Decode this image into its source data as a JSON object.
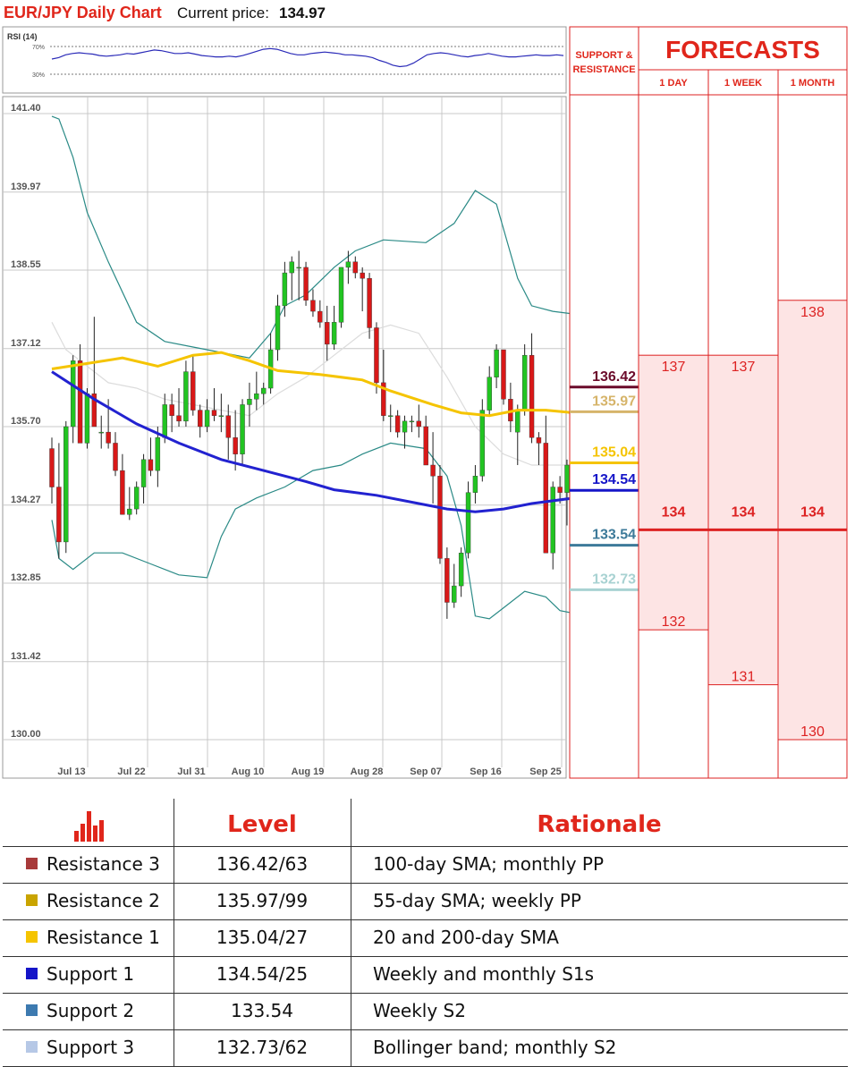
{
  "header": {
    "title": "EUR/JPY Daily Chart",
    "price_label": "Current price:",
    "price_value": "134.97"
  },
  "colors": {
    "resistance3": "#6b0b2b",
    "resistance2": "#d6b46a",
    "resistance1": "#f5c400",
    "support1": "#1515c8",
    "support2": "#3d7a99",
    "support3": "#a8d2d2",
    "accent_red": "#e0261b",
    "bull": "#22c422",
    "bear": "#d81818"
  },
  "rsi": {
    "label": "RSI (14)",
    "upper_label": "70%",
    "lower_label": "30%",
    "values": [
      52,
      54,
      58,
      60,
      61,
      60,
      59,
      57,
      56,
      57,
      58,
      60,
      59,
      61,
      63,
      65,
      64,
      62,
      60,
      60,
      61,
      59,
      57,
      56,
      55,
      55,
      56,
      55,
      57,
      60,
      63,
      66,
      67,
      66,
      63,
      60,
      58,
      58,
      60,
      61,
      62,
      61,
      60,
      58,
      58,
      57,
      56,
      54,
      50,
      47,
      43,
      41,
      42,
      46,
      52,
      58,
      60,
      61,
      60,
      58,
      56,
      55,
      57,
      58,
      60,
      58,
      56,
      55,
      55,
      56,
      57,
      58,
      57,
      57,
      58,
      57
    ]
  },
  "chart_data": {
    "type": "candlestick",
    "title": "EUR/JPY Daily Chart",
    "y_ticks": [
      "141.40",
      "139.97",
      "138.55",
      "137.12",
      "135.70",
      "134.27",
      "132.85",
      "131.42",
      "130.00"
    ],
    "x_ticks": [
      "Jul 13",
      "Jul 22",
      "Jul 31",
      "Aug 10",
      "Aug 19",
      "Aug 28",
      "Sep 07",
      "Sep 16",
      "Sep 25"
    ],
    "ylim": [
      130.0,
      141.4
    ],
    "grid": true,
    "candles": [
      [
        135.3,
        135.5,
        134.3,
        134.6
      ],
      [
        134.6,
        135.4,
        133.3,
        133.6
      ],
      [
        133.6,
        135.8,
        133.4,
        135.7
      ],
      [
        135.7,
        137.0,
        135.4,
        136.9
      ],
      [
        136.9,
        137.2,
        135.4,
        135.4
      ],
      [
        135.4,
        136.4,
        135.3,
        136.3
      ],
      [
        136.3,
        137.7,
        135.8,
        135.7
      ],
      [
        135.6,
        135.9,
        135.3,
        135.6
      ],
      [
        135.6,
        136.2,
        135.3,
        135.4
      ],
      [
        135.4,
        135.6,
        134.8,
        134.9
      ],
      [
        134.9,
        135.2,
        134.1,
        134.1
      ],
      [
        134.1,
        134.6,
        134.0,
        134.2
      ],
      [
        134.2,
        134.7,
        134.1,
        134.6
      ],
      [
        134.6,
        135.2,
        134.3,
        135.1
      ],
      [
        135.1,
        135.5,
        134.8,
        134.9
      ],
      [
        134.9,
        135.7,
        134.6,
        135.5
      ],
      [
        135.5,
        136.3,
        135.4,
        136.1
      ],
      [
        136.1,
        136.3,
        135.6,
        135.9
      ],
      [
        135.9,
        136.4,
        135.7,
        135.8
      ],
      [
        135.8,
        136.9,
        135.7,
        136.7
      ],
      [
        136.7,
        137.0,
        135.9,
        136.0
      ],
      [
        136.0,
        136.1,
        135.5,
        135.7
      ],
      [
        135.7,
        136.2,
        135.6,
        136.0
      ],
      [
        136.0,
        136.4,
        135.8,
        135.9
      ],
      [
        135.9,
        136.3,
        135.6,
        135.9
      ],
      [
        135.9,
        136.1,
        135.1,
        135.5
      ],
      [
        135.5,
        136.0,
        134.9,
        135.2
      ],
      [
        135.2,
        136.2,
        135.0,
        136.1
      ],
      [
        136.1,
        136.5,
        135.7,
        136.2
      ],
      [
        136.2,
        136.7,
        136.0,
        136.3
      ],
      [
        136.3,
        136.5,
        136.1,
        136.4
      ],
      [
        136.4,
        137.4,
        136.3,
        137.1
      ],
      [
        137.1,
        138.1,
        136.9,
        137.9
      ],
      [
        137.9,
        138.7,
        137.7,
        138.5
      ],
      [
        138.5,
        138.8,
        138.0,
        138.7
      ],
      [
        138.6,
        138.9,
        138.0,
        138.6
      ],
      [
        138.6,
        138.7,
        137.9,
        138.0
      ],
      [
        138.0,
        138.2,
        137.7,
        137.8
      ],
      [
        137.8,
        138.0,
        137.5,
        137.6
      ],
      [
        137.6,
        137.9,
        136.9,
        137.2
      ],
      [
        137.2,
        137.9,
        137.1,
        137.6
      ],
      [
        137.6,
        138.6,
        137.5,
        138.6
      ],
      [
        138.6,
        138.9,
        138.3,
        138.7
      ],
      [
        138.7,
        138.8,
        138.4,
        138.5
      ],
      [
        138.5,
        138.6,
        137.8,
        138.4
      ],
      [
        138.4,
        138.5,
        137.3,
        137.5
      ],
      [
        137.5,
        137.6,
        136.3,
        136.5
      ],
      [
        136.5,
        137.1,
        135.8,
        135.9
      ],
      [
        135.9,
        136.1,
        135.6,
        135.9
      ],
      [
        135.9,
        136.0,
        135.5,
        135.6
      ],
      [
        135.6,
        135.9,
        135.3,
        135.8
      ],
      [
        135.8,
        135.9,
        135.6,
        135.8
      ],
      [
        135.8,
        136.1,
        135.5,
        135.7
      ],
      [
        135.7,
        135.9,
        135.0,
        135.0
      ],
      [
        135.0,
        135.6,
        134.3,
        134.8
      ],
      [
        134.8,
        135.0,
        133.2,
        133.3
      ],
      [
        133.3,
        133.5,
        132.2,
        132.5
      ],
      [
        132.5,
        133.2,
        132.4,
        132.8
      ],
      [
        132.8,
        133.5,
        132.6,
        133.4
      ],
      [
        133.4,
        134.7,
        133.3,
        134.5
      ],
      [
        134.5,
        135.0,
        134.3,
        134.8
      ],
      [
        134.8,
        136.2,
        134.7,
        136.0
      ],
      [
        136.0,
        136.8,
        135.9,
        136.6
      ],
      [
        136.6,
        137.2,
        136.4,
        137.1
      ],
      [
        137.1,
        137.1,
        136.1,
        136.2
      ],
      [
        136.2,
        136.5,
        135.6,
        135.8
      ],
      [
        135.6,
        136.1,
        135.0,
        136.0
      ],
      [
        136.0,
        137.2,
        135.9,
        137.0
      ],
      [
        137.0,
        137.4,
        135.4,
        135.5
      ],
      [
        135.5,
        135.6,
        135.0,
        135.4
      ],
      [
        135.4,
        135.9,
        133.4,
        133.4
      ],
      [
        133.4,
        134.7,
        133.1,
        134.6
      ],
      [
        134.6,
        134.8,
        134.3,
        134.5
      ],
      [
        134.5,
        135.1,
        133.9,
        135.0
      ]
    ],
    "sma_yellow": [
      [
        0,
        136.75
      ],
      [
        5,
        136.85
      ],
      [
        10,
        136.95
      ],
      [
        15,
        136.8
      ],
      [
        20,
        137.0
      ],
      [
        24,
        137.05
      ],
      [
        28,
        136.9
      ],
      [
        32,
        136.72
      ],
      [
        38,
        136.65
      ],
      [
        44,
        136.55
      ],
      [
        48,
        136.35
      ],
      [
        54,
        136.1
      ],
      [
        58,
        135.95
      ],
      [
        62,
        135.9
      ],
      [
        66,
        136.0
      ],
      [
        70,
        136.0
      ],
      [
        74,
        135.95
      ]
    ],
    "sma_blue": [
      [
        0,
        136.7
      ],
      [
        6,
        136.2
      ],
      [
        12,
        135.75
      ],
      [
        18,
        135.4
      ],
      [
        24,
        135.1
      ],
      [
        30,
        134.9
      ],
      [
        36,
        134.7
      ],
      [
        40,
        134.55
      ],
      [
        46,
        134.45
      ],
      [
        52,
        134.3
      ],
      [
        56,
        134.2
      ],
      [
        60,
        134.15
      ],
      [
        64,
        134.2
      ],
      [
        68,
        134.3
      ],
      [
        74,
        134.4
      ]
    ],
    "bb_upper": [
      [
        0,
        141.35
      ],
      [
        1,
        141.3
      ],
      [
        3,
        140.6
      ],
      [
        5,
        139.6
      ],
      [
        8,
        138.7
      ],
      [
        12,
        137.6
      ],
      [
        16,
        137.25
      ],
      [
        20,
        137.15
      ],
      [
        24,
        137.05
      ],
      [
        28,
        136.95
      ],
      [
        31,
        137.4
      ],
      [
        33,
        137.9
      ],
      [
        36,
        138.1
      ],
      [
        40,
        138.6
      ],
      [
        43,
        138.9
      ],
      [
        47,
        139.1
      ],
      [
        53,
        139.05
      ],
      [
        57,
        139.4
      ],
      [
        60,
        140.0
      ],
      [
        63,
        139.75
      ],
      [
        66,
        138.4
      ],
      [
        68,
        137.9
      ],
      [
        71,
        137.8
      ],
      [
        74,
        137.75
      ]
    ],
    "bb_lower": [
      [
        0,
        134.0
      ],
      [
        1,
        133.3
      ],
      [
        3,
        133.1
      ],
      [
        6,
        133.4
      ],
      [
        10,
        133.4
      ],
      [
        14,
        133.2
      ],
      [
        18,
        133.0
      ],
      [
        22,
        132.95
      ],
      [
        24,
        133.7
      ],
      [
        26,
        134.2
      ],
      [
        29,
        134.4
      ],
      [
        33,
        134.6
      ],
      [
        37,
        134.9
      ],
      [
        41,
        135.0
      ],
      [
        44,
        135.2
      ],
      [
        48,
        135.4
      ],
      [
        53,
        135.3
      ],
      [
        56,
        134.8
      ],
      [
        58,
        133.9
      ],
      [
        60,
        132.25
      ],
      [
        62,
        132.2
      ],
      [
        64,
        132.4
      ],
      [
        67,
        132.7
      ],
      [
        70,
        132.6
      ],
      [
        72,
        132.35
      ],
      [
        74,
        132.3
      ]
    ],
    "ma_grey": [
      [
        0,
        137.6
      ],
      [
        2,
        137.1
      ],
      [
        4,
        136.9
      ],
      [
        8,
        136.5
      ],
      [
        12,
        136.4
      ],
      [
        16,
        136.2
      ],
      [
        20,
        136.1
      ],
      [
        24,
        136.0
      ],
      [
        28,
        135.9
      ],
      [
        32,
        136.3
      ],
      [
        36,
        136.6
      ],
      [
        40,
        137.0
      ],
      [
        44,
        137.4
      ],
      [
        48,
        137.55
      ],
      [
        52,
        137.4
      ],
      [
        56,
        136.6
      ],
      [
        60,
        135.7
      ],
      [
        64,
        135.2
      ],
      [
        68,
        135.0
      ],
      [
        72,
        135.0
      ],
      [
        74,
        135.0
      ]
    ],
    "levels": [
      {
        "value": "136.42",
        "color": "#6b0b2b"
      },
      {
        "value": "135.97",
        "color": "#d6b46a"
      },
      {
        "value": "135.04",
        "color": "#f5c400"
      },
      {
        "value": "134.54",
        "color": "#1515c8"
      },
      {
        "value": "133.54",
        "color": "#3d7a99"
      },
      {
        "value": "132.73",
        "color": "#a8d2d2"
      }
    ],
    "sr_header": [
      "SUPPORT &",
      "RESISTANCE"
    ],
    "forecast": {
      "title": "FORECASTS",
      "center": "134",
      "columns": [
        {
          "label": "1 DAY",
          "high": "137",
          "low": "132"
        },
        {
          "label": "1 WEEK",
          "high": "137",
          "low": "131"
        },
        {
          "label": "1 MONTH",
          "high": "138",
          "low": "130"
        }
      ]
    }
  },
  "table": {
    "headers": {
      "level": "Level",
      "rationale": "Rationale"
    },
    "icon": "bar-chart-icon",
    "rows": [
      {
        "name": "Resistance 3",
        "level": "136.42/63",
        "rationale": "100-day SMA; monthly PP",
        "color": "#a83a3a"
      },
      {
        "name": "Resistance 2",
        "level": "135.97/99",
        "rationale": "55-day SMA; weekly PP",
        "color": "#c9a400"
      },
      {
        "name": "Resistance 1",
        "level": "135.04/27",
        "rationale": "20 and 200-day SMA",
        "color": "#f5c400"
      },
      {
        "name": "Support 1",
        "level": "134.54/25",
        "rationale": "Weekly and monthly S1s",
        "color": "#1515c8"
      },
      {
        "name": "Support 2",
        "level": "133.54",
        "rationale": "Weekly S2",
        "color": "#3d7ab0"
      },
      {
        "name": "Support 3",
        "level": "132.73/62",
        "rationale": "Bollinger band; monthly S2",
        "color": "#b6c8e6"
      }
    ]
  }
}
